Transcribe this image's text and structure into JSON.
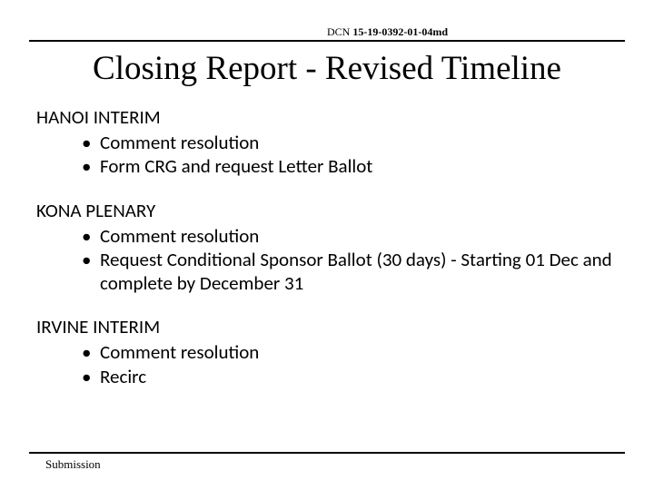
{
  "dcn": {
    "label": "DCN ",
    "number": "15-19-0392-01-04md"
  },
  "title": "Closing Report  - Revised Timeline",
  "sections": [
    {
      "heading": "HANOI INTERIM",
      "items": [
        "Comment resolution",
        "Form CRG and request Letter Ballot"
      ]
    },
    {
      "heading": "KONA PLENARY",
      "items": [
        "Comment resolution",
        "Request Conditional Sponsor Ballot (30 days) - Starting 01 Dec and complete by December 31"
      ]
    },
    {
      "heading": "IRVINE INTERIM",
      "items": [
        "Comment resolution",
        "Recirc"
      ]
    }
  ],
  "footer": "Submission",
  "colors": {
    "text": "#000000",
    "background": "#ffffff",
    "rule": "#000000"
  },
  "typography": {
    "title_fontsize": 37,
    "body_fontsize": 21,
    "dcn_fontsize": 12,
    "footer_fontsize": 13
  }
}
